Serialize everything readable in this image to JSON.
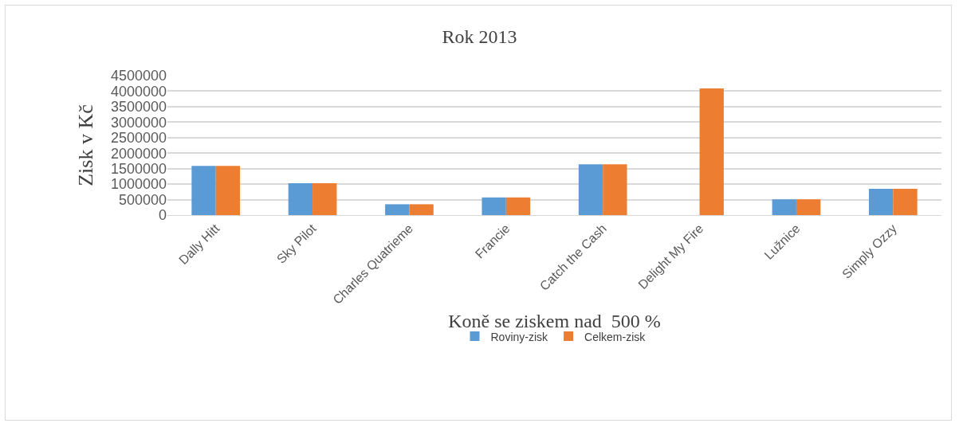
{
  "chart_data": {
    "type": "bar",
    "title": "Rok 2013",
    "xlabel": "Koně se ziskem nad  500 %",
    "ylabel": "Zisk v Kč",
    "categories": [
      "Dally Hitt",
      "Sky Pilot",
      "Charles Quatrieme",
      "Francie",
      "Catch the Cash",
      "Delight My Fire",
      "Lužnice",
      "Simply Ozzy"
    ],
    "series": [
      {
        "name": "Roviny-zisk",
        "color": "#5b9bd5",
        "values": [
          1590000,
          1030000,
          350000,
          570000,
          1640000,
          null,
          510000,
          850000
        ]
      },
      {
        "name": "Celkem-zisk",
        "color": "#ed7d31",
        "values": [
          1590000,
          1030000,
          350000,
          570000,
          1640000,
          4090000,
          510000,
          850000
        ]
      }
    ],
    "ylim": [
      0,
      4500000
    ],
    "yticks": [
      0,
      500000,
      1000000,
      1500000,
      2000000,
      2500000,
      3000000,
      3500000,
      4000000,
      4500000
    ],
    "grid": "y",
    "legend": "bottom"
  }
}
